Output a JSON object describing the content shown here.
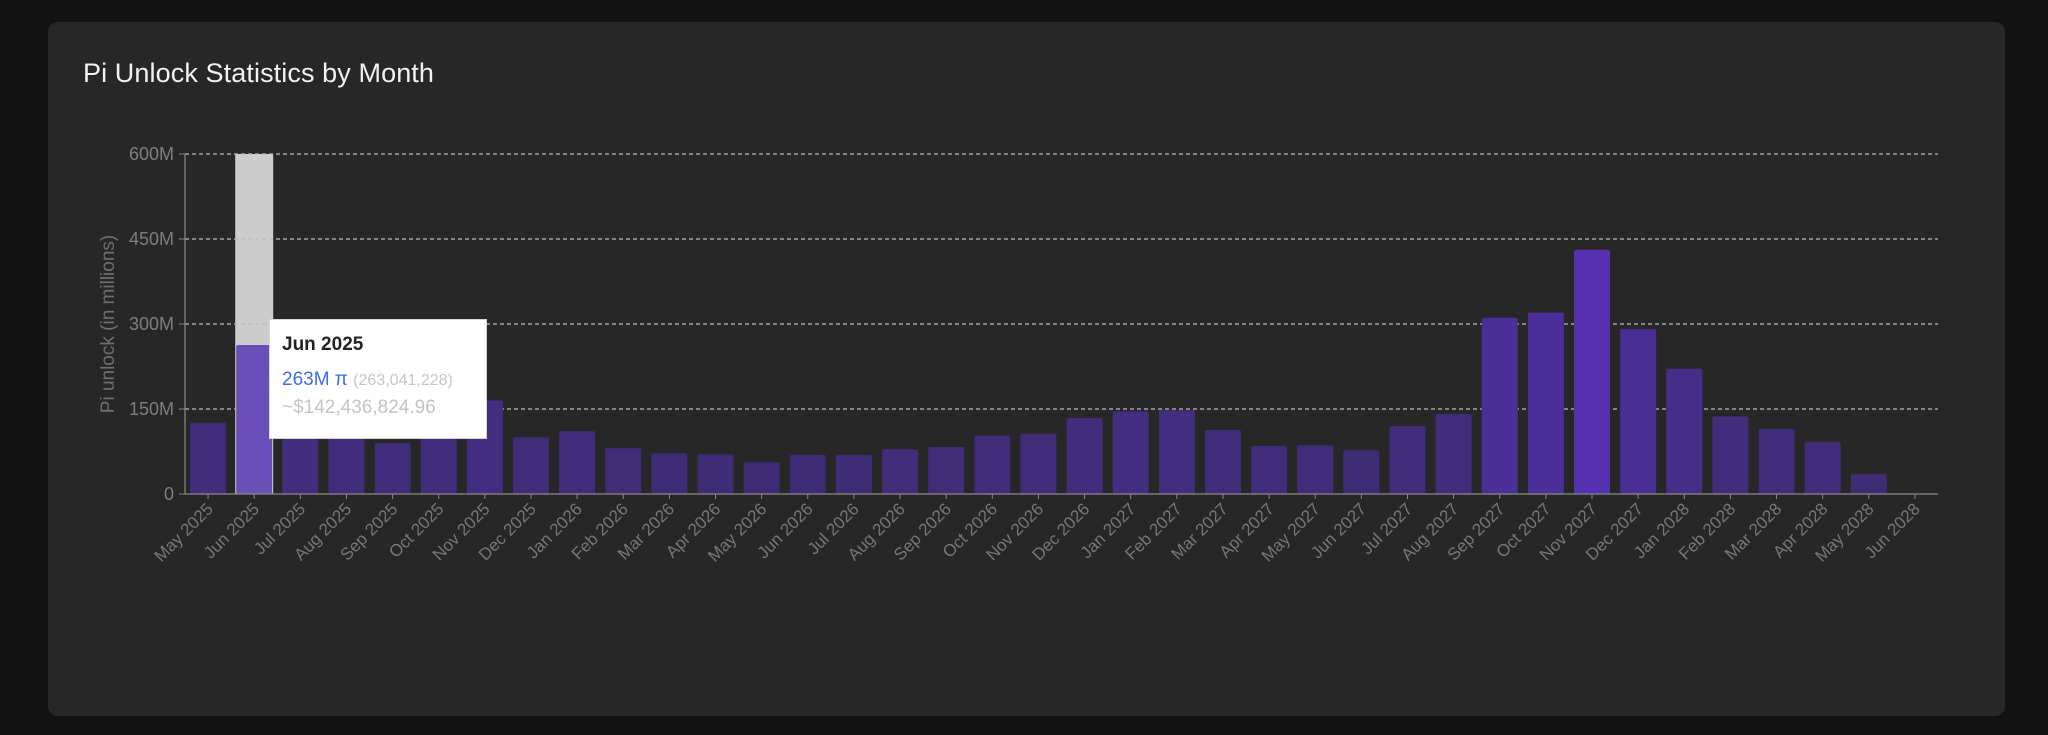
{
  "card": {
    "title": "Pi Unlock Statistics by Month"
  },
  "colors": {
    "background": "#121212",
    "card": "#272727",
    "bar_low": "#3e2c73",
    "bar_high": "#5530b0",
    "bar_active": "#6a4fb8",
    "hover_band": "#cccccc",
    "grid": "#bdbdbd",
    "axis": "#8a8a8a"
  },
  "tooltip": {
    "title": "Jun 2025",
    "amount": "263M π",
    "raw": "(263,041,228)",
    "usd": "~$142,436,824.96"
  },
  "chart_data": {
    "type": "bar",
    "title": "Pi Unlock Statistics by Month",
    "xlabel": "",
    "ylabel": "Pi unlock (in millions)",
    "ylim": [
      0,
      600
    ],
    "yticks": [
      0,
      150,
      300,
      450,
      600
    ],
    "ytick_labels": [
      "0",
      "150M",
      "300M",
      "450M",
      "600M"
    ],
    "grid": true,
    "highlighted_category": "Jun 2025",
    "categories": [
      "May 2025",
      "Jun 2025",
      "Jul 2025",
      "Aug 2025",
      "Sep 2025",
      "Oct 2025",
      "Nov 2025",
      "Dec 2025",
      "Jan 2026",
      "Feb 2026",
      "Mar 2026",
      "Apr 2026",
      "May 2026",
      "Jun 2026",
      "Jul 2026",
      "Aug 2026",
      "Sep 2026",
      "Oct 2026",
      "Nov 2026",
      "Dec 2026",
      "Jan 2027",
      "Feb 2027",
      "Mar 2027",
      "Apr 2027",
      "May 2027",
      "Jun 2027",
      "Jul 2027",
      "Aug 2027",
      "Sep 2027",
      "Oct 2027",
      "Nov 2027",
      "Dec 2027",
      "Jan 2028",
      "Feb 2028",
      "Mar 2028",
      "Apr 2028",
      "May 2028",
      "Jun 2028"
    ],
    "values": [
      126,
      263,
      125,
      130,
      90,
      120,
      165,
      100,
      111,
      81,
      72,
      70,
      56,
      69,
      69,
      79,
      83,
      103,
      106,
      134,
      146,
      148,
      113,
      85,
      86,
      77,
      120,
      141,
      311,
      320,
      431,
      291,
      221,
      137,
      115,
      92,
      35,
      0
    ]
  }
}
